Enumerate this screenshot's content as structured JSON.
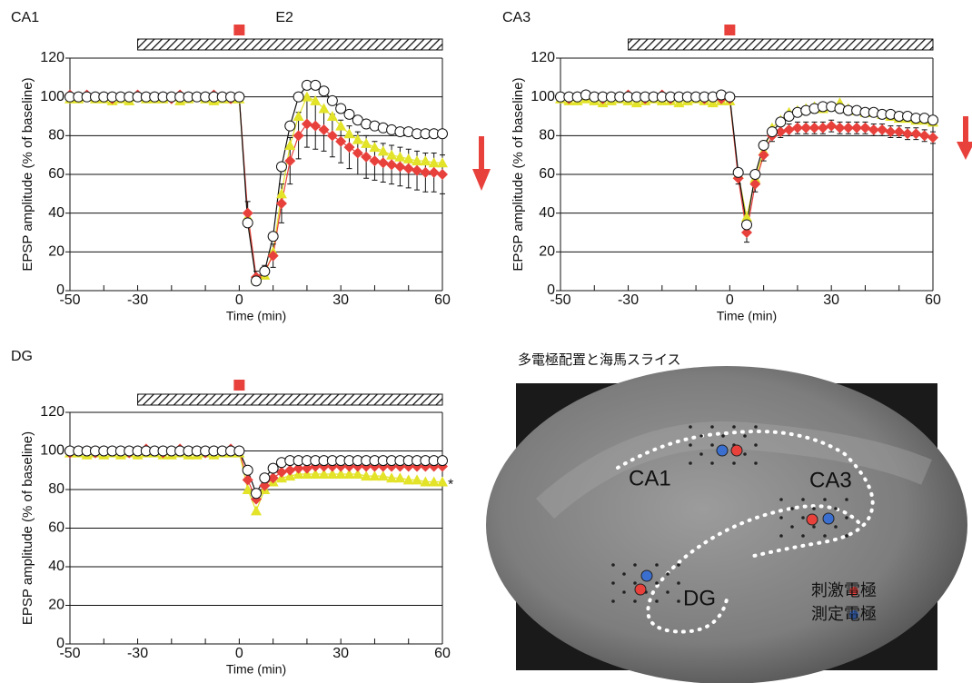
{
  "chart_data": [
    {
      "type": "line",
      "title": "CA1",
      "treatment_label": "E2",
      "treatment_range": [
        -30,
        60
      ],
      "stimulus_time": 0,
      "x_label": "Time (min)",
      "y_label": "EPSP amplitude (% of baseline)",
      "x": [
        -50,
        -47.5,
        -45,
        -42.5,
        -40,
        -37.5,
        -35,
        -32.5,
        -30,
        -27.5,
        -25,
        -22.5,
        -20,
        -17.5,
        -15,
        -12.5,
        -10,
        -7.5,
        -5,
        -2.5,
        0,
        2.5,
        5,
        7.5,
        10,
        12.5,
        15,
        17.5,
        20,
        22.5,
        25,
        27.5,
        30,
        32.5,
        35,
        37.5,
        40,
        42.5,
        45,
        47.5,
        50,
        52.5,
        55,
        57.5,
        60
      ],
      "xlim": [
        -50,
        60
      ],
      "xticks": [
        -50,
        -30,
        0,
        30,
        60
      ],
      "xminor_ticks": [
        -40,
        -20,
        -10,
        10,
        20,
        40,
        50
      ],
      "ylim": [
        0,
        120
      ],
      "yticks": [
        0,
        20,
        40,
        60,
        80,
        100,
        120
      ],
      "grid": true,
      "series": [
        {
          "color": "#e3e32a",
          "marker": "triangle",
          "values": [
            99,
            99,
            100,
            99,
            99,
            98,
            99,
            98,
            100,
            99,
            99,
            99,
            100,
            98,
            99,
            100,
            99,
            98,
            99,
            99,
            99,
            38,
            6,
            8,
            20,
            50,
            75,
            90,
            100,
            98,
            94,
            90,
            85,
            81,
            78,
            76,
            74,
            72,
            70,
            69,
            68,
            67,
            67,
            66,
            66
          ]
        },
        {
          "color": "#e8413c",
          "marker": "diamond",
          "values": [
            101,
            100,
            101,
            100,
            100,
            99,
            100,
            100,
            101,
            100,
            100,
            100,
            99,
            101,
            100,
            100,
            100,
            101,
            100,
            99,
            100,
            40,
            7,
            10,
            18,
            45,
            67,
            80,
            86,
            85,
            83,
            80,
            77,
            74,
            71,
            69,
            67,
            66,
            65,
            64,
            63,
            62,
            61,
            61,
            60
          ],
          "errors": [
            1,
            1,
            1,
            1,
            1,
            1,
            1,
            1,
            1,
            1,
            1,
            1,
            1,
            1,
            1,
            1,
            1,
            1,
            1,
            1,
            1,
            6,
            3,
            3,
            6,
            10,
            12,
            12,
            12,
            12,
            11,
            11,
            11,
            11,
            11,
            11,
            10,
            10,
            10,
            10,
            10,
            10,
            10,
            10,
            10
          ]
        },
        {
          "color": "#ffffff",
          "marker": "circle",
          "values": [
            100,
            100,
            100,
            100,
            100,
            100,
            100,
            100,
            100,
            100,
            100,
            100,
            100,
            100,
            100,
            100,
            100,
            100,
            100,
            100,
            100,
            35,
            5,
            10,
            28,
            64,
            85,
            100,
            106,
            106,
            103,
            98,
            94,
            91,
            88,
            86,
            85,
            84,
            83,
            82,
            82,
            81,
            81,
            81,
            81
          ]
        }
      ]
    },
    {
      "type": "line",
      "title": "CA3",
      "treatment_range": [
        -30,
        60
      ],
      "stimulus_time": 0,
      "x_label": "Time (min)",
      "y_label": "EPSP amplitude (% of baseline)",
      "x": [
        -50,
        -47.5,
        -45,
        -42.5,
        -40,
        -37.5,
        -35,
        -32.5,
        -30,
        -27.5,
        -25,
        -22.5,
        -20,
        -17.5,
        -15,
        -12.5,
        -10,
        -7.5,
        -5,
        -2.5,
        0,
        2.5,
        5,
        7.5,
        10,
        12.5,
        15,
        17.5,
        20,
        22.5,
        25,
        27.5,
        30,
        32.5,
        35,
        37.5,
        40,
        42.5,
        45,
        47.5,
        50,
        52.5,
        55,
        57.5,
        60
      ],
      "xlim": [
        -50,
        60
      ],
      "xticks": [
        -50,
        -30,
        0,
        30,
        60
      ],
      "xminor_ticks": [
        -40,
        -20,
        -10,
        10,
        20,
        40,
        50
      ],
      "ylim": [
        0,
        120
      ],
      "yticks": [
        0,
        20,
        40,
        60,
        80,
        100,
        120
      ],
      "grid": true,
      "series": [
        {
          "color": "#e3e32a",
          "marker": "triangle",
          "values": [
            99,
            98,
            98,
            99,
            98,
            97,
            98,
            99,
            98,
            97,
            98,
            99,
            98,
            98,
            97,
            98,
            99,
            98,
            97,
            98,
            98,
            60,
            38,
            58,
            72,
            84,
            88,
            92,
            93,
            94,
            95,
            94,
            95,
            97,
            94,
            93,
            92,
            92,
            91,
            90,
            89,
            89,
            88,
            88,
            87
          ]
        },
        {
          "color": "#e8413c",
          "marker": "diamond",
          "values": [
            100,
            99,
            100,
            101,
            100,
            99,
            100,
            100,
            101,
            100,
            99,
            100,
            101,
            99,
            100,
            100,
            100,
            99,
            100,
            99,
            99,
            58,
            30,
            55,
            70,
            80,
            82,
            83,
            84,
            84,
            84,
            84,
            85,
            84,
            84,
            84,
            84,
            83,
            83,
            82,
            82,
            81,
            81,
            80,
            79
          ],
          "errors": [
            1,
            1,
            1,
            1,
            1,
            1,
            1,
            1,
            1,
            1,
            1,
            1,
            1,
            1,
            1,
            1,
            1,
            1,
            1,
            1,
            1,
            3,
            5,
            4,
            3,
            3,
            3,
            3,
            3,
            3,
            3,
            3,
            3,
            3,
            3,
            3,
            3,
            3,
            3,
            3,
            3,
            3,
            3,
            3,
            3
          ]
        },
        {
          "color": "#ffffff",
          "marker": "circle",
          "values": [
            100,
            100,
            100,
            101,
            100,
            100,
            100,
            100,
            100,
            100,
            100,
            100,
            100,
            100,
            100,
            100,
            100,
            100,
            100,
            101,
            100,
            61,
            34,
            60,
            75,
            82,
            87,
            90,
            92,
            93,
            94,
            95,
            95,
            94,
            93,
            93,
            92,
            92,
            91,
            91,
            90,
            90,
            89,
            89,
            88
          ]
        }
      ]
    },
    {
      "type": "line",
      "title": "DG",
      "treatment_range": [
        -30,
        60
      ],
      "stimulus_time": 0,
      "annotation": "*",
      "x_label": "Time (min)",
      "y_label": "EPSP amplitude (% of baseline)",
      "x": [
        -50,
        -47.5,
        -45,
        -42.5,
        -40,
        -37.5,
        -35,
        -32.5,
        -30,
        -27.5,
        -25,
        -22.5,
        -20,
        -17.5,
        -15,
        -12.5,
        -10,
        -7.5,
        -5,
        -2.5,
        0,
        2.5,
        5,
        7.5,
        10,
        12.5,
        15,
        17.5,
        20,
        22.5,
        25,
        27.5,
        30,
        32.5,
        35,
        37.5,
        40,
        42.5,
        45,
        47.5,
        50,
        52.5,
        55,
        57.5,
        60
      ],
      "xlim": [
        -50,
        60
      ],
      "xticks": [
        -50,
        -30,
        0,
        30,
        60
      ],
      "xminor_ticks": [
        -40,
        -20,
        -10,
        10,
        20,
        40,
        50
      ],
      "ylim": [
        0,
        120
      ],
      "yticks": [
        0,
        20,
        40,
        60,
        80,
        100,
        120
      ],
      "grid": true,
      "series": [
        {
          "color": "#e3e32a",
          "marker": "triangle",
          "values": [
            99,
            99,
            98,
            99,
            98,
            99,
            98,
            99,
            98,
            99,
            99,
            98,
            98,
            99,
            98,
            98,
            99,
            98,
            99,
            99,
            99,
            80,
            69,
            80,
            84,
            86,
            87,
            88,
            88,
            88,
            88,
            88,
            88,
            88,
            88,
            87,
            87,
            87,
            86,
            86,
            85,
            85,
            84,
            84,
            84
          ]
        },
        {
          "color": "#e8413c",
          "marker": "diamond",
          "values": [
            99,
            100,
            100,
            99,
            100,
            100,
            100,
            99,
            100,
            101,
            100,
            99,
            100,
            101,
            100,
            100,
            99,
            100,
            100,
            101,
            100,
            85,
            75,
            82,
            86,
            89,
            90,
            91,
            91,
            92,
            92,
            92,
            92,
            92,
            92,
            92,
            92,
            92,
            92,
            92,
            92,
            92,
            92,
            92,
            92
          ]
        },
        {
          "color": "#ffffff",
          "marker": "circle",
          "values": [
            100,
            100,
            100,
            100,
            100,
            100,
            100,
            100,
            100,
            100,
            100,
            100,
            100,
            100,
            100,
            100,
            100,
            100,
            100,
            100,
            100,
            90,
            78,
            86,
            91,
            94,
            95,
            95,
            95,
            95,
            95,
            95,
            95,
            95,
            95,
            95,
            95,
            95,
            95,
            95,
            95,
            95,
            95,
            95,
            95
          ]
        }
      ]
    }
  ],
  "image_panel": {
    "title": "多電極配置と海馬スライス",
    "labels": [
      "CA1",
      "CA3",
      "DG"
    ],
    "legend": [
      "刺激電極",
      "測定電極"
    ]
  }
}
